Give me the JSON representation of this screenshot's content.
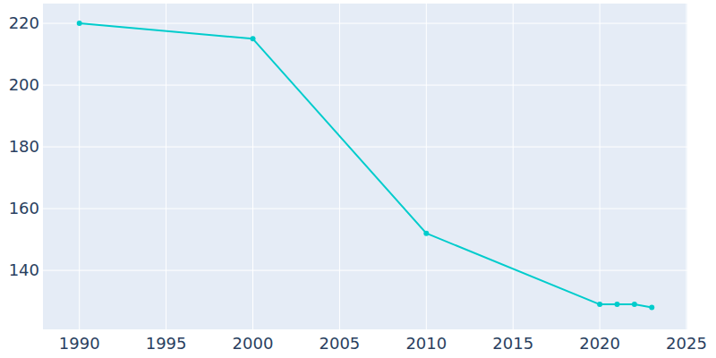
{
  "chart_data": {
    "type": "line",
    "x": [
      1990,
      2000,
      2010,
      2020,
      2021,
      2022,
      2023
    ],
    "values": [
      220,
      215,
      152,
      129,
      129,
      129,
      128
    ],
    "color": "#00cccc",
    "marker": "circle",
    "xlim": [
      1987.9,
      2025.05
    ],
    "xticks": [
      1990,
      1995,
      2000,
      2005,
      2010,
      2015,
      2020,
      2025
    ],
    "ylim": [
      120.9,
      226.4
    ],
    "yticks": [
      140,
      160,
      180,
      200,
      220
    ],
    "grid": true
  }
}
